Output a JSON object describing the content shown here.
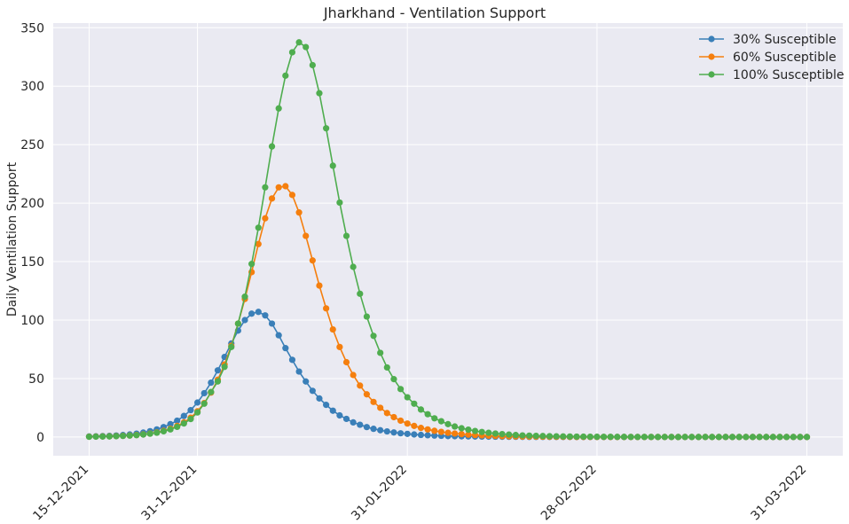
{
  "chart_data": {
    "type": "line",
    "title": "Jharkhand - Ventilation Support",
    "xlabel": "",
    "ylabel": "Daily Ventilation Support",
    "x_start": "15-12-2021",
    "x_end": "31-03-2022",
    "x_ticks": [
      "15-12-2021",
      "31-12-2021",
      "31-01-2022",
      "28-02-2022",
      "31-03-2022"
    ],
    "ylim": [
      -16,
      354
    ],
    "y_ticks": [
      0,
      50,
      100,
      150,
      200,
      250,
      300,
      350
    ],
    "grid": true,
    "legend_position": "top-right",
    "series": [
      {
        "name": "30% Susceptible",
        "color": "#3a7fb8",
        "values": [
          0.5,
          0.6,
          0.8,
          1,
          1.3,
          1.7,
          2.2,
          2.9,
          3.8,
          5,
          6.5,
          8.5,
          11,
          14,
          18,
          23,
          29.5,
          37.5,
          46.5,
          57,
          68.5,
          80,
          91,
          100,
          105.5,
          107,
          104,
          97,
          87,
          76,
          66,
          56,
          47.5,
          39.5,
          33,
          27.5,
          22.5,
          18.5,
          15.5,
          12.5,
          10.5,
          8.5,
          7,
          5.8,
          4.8,
          3.9,
          3.2,
          2.7,
          2.2,
          1.8,
          1.5,
          1.2,
          1,
          0.8,
          0.7,
          0.6,
          0.5,
          0.4,
          0.35,
          0.3,
          0.25,
          0.2,
          0.17,
          0.15,
          0.13,
          0.1,
          0.09,
          0.08,
          0.07,
          0.06,
          0.05,
          0.05,
          0.04,
          0.04,
          0.03,
          0.03,
          0.03,
          0.02,
          0.02,
          0.02,
          0.02,
          0.02,
          0.01,
          0.01,
          0.01,
          0.01,
          0.01,
          0.01,
          0.01,
          0.01,
          0.01,
          0.01,
          0.01,
          0.01,
          0.01,
          0.01,
          0.01,
          0.01,
          0.01,
          0.01,
          0.01,
          0.01,
          0.01,
          0.01,
          0.01,
          0.01,
          0.01
        ]
      },
      {
        "name": "60% Susceptible",
        "color": "#f57f0e",
        "values": [
          0.3,
          0.4,
          0.5,
          0.6,
          0.8,
          1,
          1.3,
          1.7,
          2.3,
          3,
          4,
          5.3,
          7,
          9.5,
          12.5,
          16.5,
          22,
          29,
          38,
          49,
          62,
          78,
          97,
          118,
          141,
          165,
          187,
          204,
          213.5,
          214.5,
          207,
          192,
          172,
          151,
          129.5,
          110,
          92,
          77,
          64,
          53,
          44,
          36.5,
          30,
          25,
          20.5,
          17,
          14,
          11.5,
          9.5,
          7.8,
          6.5,
          5.3,
          4.4,
          3.6,
          3,
          2.5,
          2,
          1.7,
          1.4,
          1.1,
          0.9,
          0.75,
          0.6,
          0.5,
          0.42,
          0.35,
          0.29,
          0.24,
          0.2,
          0.17,
          0.14,
          0.12,
          0.1,
          0.08,
          0.07,
          0.06,
          0.05,
          0.04,
          0.03,
          0.03,
          0.02,
          0.02,
          0.02,
          0.01,
          0.01,
          0.01,
          0.01,
          0.01,
          0.01,
          0.01,
          0.01,
          0.01,
          0.01,
          0.01,
          0.01,
          0.01,
          0.01,
          0.01,
          0.01,
          0.01,
          0.01,
          0.01,
          0.01,
          0.01,
          0.01,
          0.01,
          0.01
        ]
      },
      {
        "name": "100% Susceptible",
        "color": "#4fad4f",
        "values": [
          0.2,
          0.3,
          0.4,
          0.5,
          0.7,
          0.9,
          1.2,
          1.6,
          2.1,
          2.8,
          3.7,
          4.9,
          6.5,
          8.7,
          11.6,
          15.4,
          21,
          28.5,
          38.5,
          47.5,
          60,
          77,
          97,
          120,
          148,
          179,
          213.5,
          248.5,
          281,
          309,
          329,
          337.5,
          333.5,
          318,
          294,
          264,
          232,
          200.5,
          172,
          145.5,
          122.5,
          103,
          86.5,
          72,
          59.5,
          49.5,
          41,
          34,
          28.5,
          23.5,
          19.5,
          16,
          13.5,
          11,
          9,
          7.5,
          6.3,
          5.2,
          4.3,
          3.6,
          3,
          2.5,
          2.1,
          1.7,
          1.4,
          1.2,
          1,
          0.85,
          0.7,
          0.6,
          0.5,
          0.42,
          0.35,
          0.29,
          0.24,
          0.2,
          0.17,
          0.14,
          0.12,
          0.1,
          0.08,
          0.07,
          0.06,
          0.05,
          0.04,
          0.03,
          0.03,
          0.02,
          0.02,
          0.02,
          0.01,
          0.01,
          0.01,
          0.01,
          0.01,
          0.01,
          0.01,
          0.01,
          0.01,
          0.01,
          0.01,
          0.01,
          0.01,
          0.01,
          0.01,
          0.01,
          0.01
        ]
      }
    ]
  }
}
